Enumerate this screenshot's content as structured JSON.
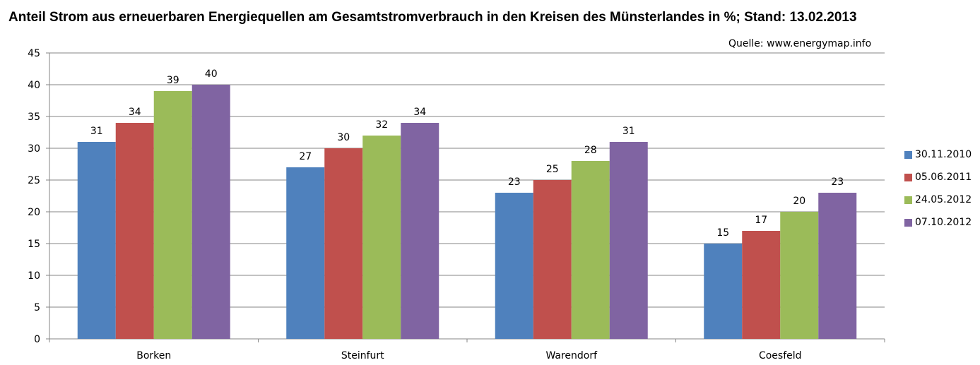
{
  "title": "Anteil Strom aus erneuerbaren Energiequellen am Gesamtstromverbrauch in den Kreisen des Münsterlandes in %; Stand: 13.02.2013",
  "source": "Quelle:  www.energymap.info",
  "chart_data": {
    "type": "bar",
    "title": "Anteil Strom aus erneuerbaren Energiequellen am Gesamtstromverbrauch in den Kreisen des Münsterlandes in %; Stand: 13.02.2013",
    "categories": [
      "Borken",
      "Steinfurt",
      "Warendorf",
      "Coesfeld"
    ],
    "series": [
      {
        "name": "30.11.2010",
        "color": "#4F81BD",
        "values": [
          31,
          27,
          23,
          15
        ]
      },
      {
        "name": "05.06.2011",
        "color": "#C0504D",
        "values": [
          34,
          30,
          25,
          17
        ]
      },
      {
        "name": "24.05.2012",
        "color": "#9BBB59",
        "values": [
          39,
          32,
          28,
          20
        ]
      },
      {
        "name": "07.10.2012",
        "color": "#8064A2",
        "values": [
          40,
          34,
          31,
          23
        ]
      }
    ],
    "ylim": [
      0,
      45
    ],
    "yticks": [
      0,
      5,
      10,
      15,
      20,
      25,
      30,
      35,
      40,
      45
    ],
    "grid": true,
    "legend_position": "right"
  }
}
